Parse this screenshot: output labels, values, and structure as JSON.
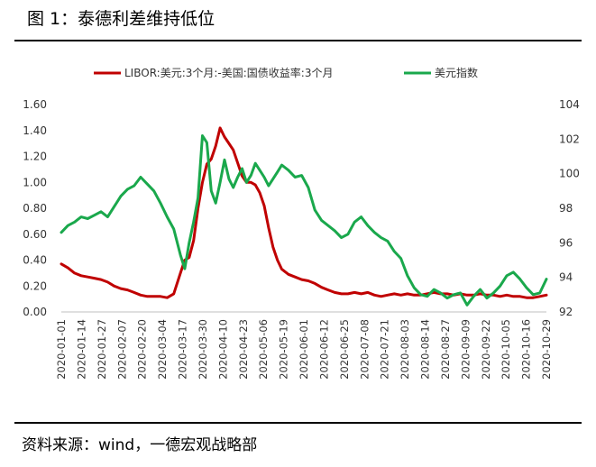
{
  "figure": {
    "title": "图 1：泰德利差维持低位",
    "source": "资料来源：wind，一德宏观战略部"
  },
  "chart_data": {
    "type": "line",
    "title": "",
    "xlabel": "",
    "ylabel_left": "",
    "ylabel_right": "",
    "ylim_left": [
      0,
      1.6
    ],
    "ylim_right": [
      92,
      104
    ],
    "yticks_left": [
      "0.00",
      "0.20",
      "0.40",
      "0.60",
      "0.80",
      "1.00",
      "1.20",
      "1.40",
      "1.60"
    ],
    "yticks_right": [
      "92",
      "94",
      "96",
      "98",
      "100",
      "102",
      "104"
    ],
    "xticks": [
      "2020-01-01",
      "2020-01-14",
      "2020-01-27",
      "2020-02-07",
      "2020-02-20",
      "2020-03-04",
      "2020-03-17",
      "2020-03-30",
      "2020-04-10",
      "2020-04-23",
      "2020-05-06",
      "2020-05-19",
      "2020-06-01",
      "2020-06-12",
      "2020-06-25",
      "2020-07-08",
      "2020-07-21",
      "2020-08-03",
      "2020-08-14",
      "2020-08-27",
      "2020-09-09",
      "2020-09-22",
      "2020-10-05",
      "2020-10-16",
      "2020-10-29"
    ],
    "x_index_range": [
      0,
      220
    ],
    "legend_position": "top",
    "series": [
      {
        "name": "LIBOR:美元:3个月:-美国:国债收益率:3个月",
        "axis": "left",
        "color": "#c00000",
        "x": [
          0,
          3,
          6,
          9,
          12,
          15,
          18,
          21,
          24,
          27,
          30,
          33,
          36,
          39,
          42,
          45,
          48,
          51,
          54,
          56,
          58,
          60,
          62,
          64,
          66,
          68,
          70,
          72,
          74,
          76,
          78,
          80,
          82,
          84,
          86,
          88,
          90,
          92,
          94,
          96,
          98,
          100,
          103,
          106,
          109,
          112,
          115,
          118,
          121,
          124,
          127,
          130,
          133,
          136,
          139,
          142,
          145,
          148,
          151,
          154,
          157,
          160,
          163,
          166,
          169,
          172,
          175,
          178,
          181,
          184,
          187,
          190,
          193,
          196,
          199,
          202,
          205,
          208,
          211,
          214,
          217,
          220
        ],
        "values": [
          0.37,
          0.34,
          0.3,
          0.28,
          0.27,
          0.26,
          0.25,
          0.23,
          0.2,
          0.18,
          0.17,
          0.15,
          0.13,
          0.12,
          0.12,
          0.12,
          0.11,
          0.14,
          0.3,
          0.4,
          0.42,
          0.55,
          0.8,
          1.0,
          1.14,
          1.18,
          1.28,
          1.42,
          1.35,
          1.3,
          1.25,
          1.15,
          1.05,
          1.0,
          1.0,
          0.98,
          0.92,
          0.82,
          0.65,
          0.5,
          0.4,
          0.33,
          0.29,
          0.27,
          0.25,
          0.24,
          0.22,
          0.19,
          0.17,
          0.15,
          0.14,
          0.14,
          0.15,
          0.14,
          0.15,
          0.13,
          0.12,
          0.13,
          0.14,
          0.13,
          0.14,
          0.13,
          0.13,
          0.14,
          0.15,
          0.14,
          0.14,
          0.13,
          0.14,
          0.13,
          0.13,
          0.14,
          0.13,
          0.13,
          0.12,
          0.13,
          0.12,
          0.12,
          0.11,
          0.11,
          0.12,
          0.13
        ]
      },
      {
        "name": "美元指数",
        "axis": "right",
        "color": "#1aa84c",
        "x": [
          0,
          3,
          6,
          9,
          12,
          15,
          18,
          21,
          24,
          27,
          30,
          33,
          36,
          39,
          42,
          45,
          48,
          51,
          54,
          56,
          58,
          60,
          62,
          64,
          66,
          68,
          70,
          72,
          74,
          76,
          78,
          80,
          82,
          84,
          86,
          88,
          90,
          92,
          94,
          96,
          98,
          100,
          103,
          106,
          109,
          112,
          115,
          118,
          121,
          124,
          127,
          130,
          133,
          136,
          139,
          142,
          145,
          148,
          151,
          154,
          157,
          160,
          163,
          166,
          169,
          172,
          175,
          178,
          181,
          184,
          187,
          190,
          193,
          196,
          199,
          202,
          205,
          208,
          211,
          214,
          217,
          220
        ],
        "values": [
          96.6,
          97.0,
          97.2,
          97.5,
          97.4,
          97.6,
          97.8,
          97.5,
          98.1,
          98.7,
          99.1,
          99.3,
          99.8,
          99.4,
          99.0,
          98.3,
          97.5,
          96.8,
          95.3,
          94.5,
          96.0,
          97.2,
          98.6,
          102.2,
          101.8,
          99.0,
          98.3,
          99.5,
          100.8,
          99.7,
          99.2,
          99.8,
          100.3,
          99.5,
          99.9,
          100.6,
          100.2,
          99.8,
          99.3,
          99.7,
          100.1,
          100.5,
          100.2,
          99.8,
          99.9,
          99.2,
          97.9,
          97.3,
          97.0,
          96.7,
          96.3,
          96.5,
          97.2,
          97.5,
          97.0,
          96.6,
          96.3,
          96.1,
          95.5,
          95.1,
          94.1,
          93.4,
          93.0,
          92.9,
          93.3,
          93.1,
          92.8,
          93.0,
          93.1,
          92.4,
          92.9,
          93.3,
          92.8,
          93.1,
          93.5,
          94.1,
          94.3,
          93.9,
          93.4,
          93.0,
          93.1,
          93.9
        ]
      }
    ]
  }
}
